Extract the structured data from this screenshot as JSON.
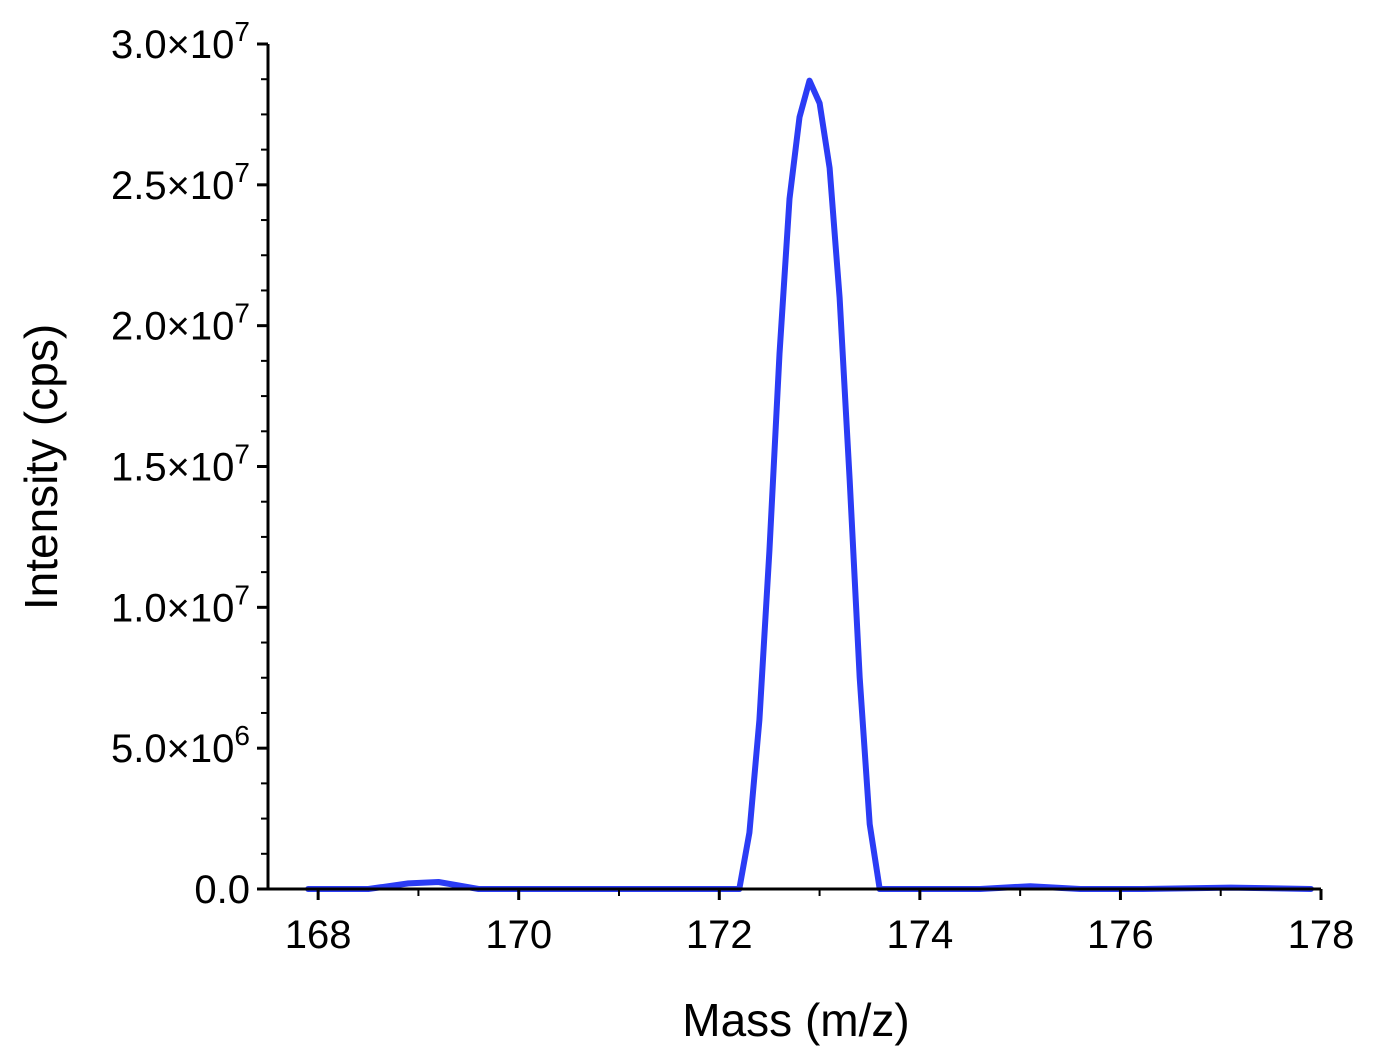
{
  "chart_data": {
    "type": "line",
    "xlabel": "Mass (m/z)",
    "ylabel": "Intensity (cps)",
    "xlim": [
      167.5,
      178
    ],
    "ylim": [
      0,
      30000000
    ],
    "x_ticks": [
      168,
      170,
      172,
      174,
      176,
      178
    ],
    "x_tick_labels": [
      "168",
      "170",
      "172",
      "174",
      "176",
      "178"
    ],
    "y_ticks": [
      {
        "value": 0,
        "mantissa": "0.0",
        "exponent": ""
      },
      {
        "value": 5000000,
        "mantissa": "5.0×10",
        "exponent": "6"
      },
      {
        "value": 10000000,
        "mantissa": "1.0×10",
        "exponent": "7"
      },
      {
        "value": 15000000,
        "mantissa": "1.5×10",
        "exponent": "7"
      },
      {
        "value": 20000000,
        "mantissa": "2.0×10",
        "exponent": "7"
      },
      {
        "value": 25000000,
        "mantissa": "2.5×10",
        "exponent": "7"
      },
      {
        "value": 30000000,
        "mantissa": "3.0×10",
        "exponent": "7"
      }
    ],
    "grid": false,
    "series": [
      {
        "color": "#2b3cf5",
        "x": [
          167.9,
          168.5,
          168.9,
          169.2,
          169.6,
          170.0,
          171.0,
          171.8,
          172.2,
          172.3,
          172.4,
          172.5,
          172.6,
          172.7,
          172.8,
          172.9,
          173.0,
          173.1,
          173.2,
          173.3,
          173.4,
          173.5,
          173.6,
          174.0,
          174.6,
          175.1,
          175.6,
          176.2,
          177.1,
          177.9
        ],
        "y": [
          0,
          0,
          200000,
          250000,
          0,
          0,
          0,
          0,
          0,
          2000000,
          6000000,
          12000000,
          19000000,
          24500000,
          27400000,
          28700000,
          27900000,
          25600000,
          21000000,
          14500000,
          7500000,
          2300000,
          0,
          0,
          0,
          100000,
          0,
          0,
          50000,
          0
        ]
      }
    ]
  }
}
